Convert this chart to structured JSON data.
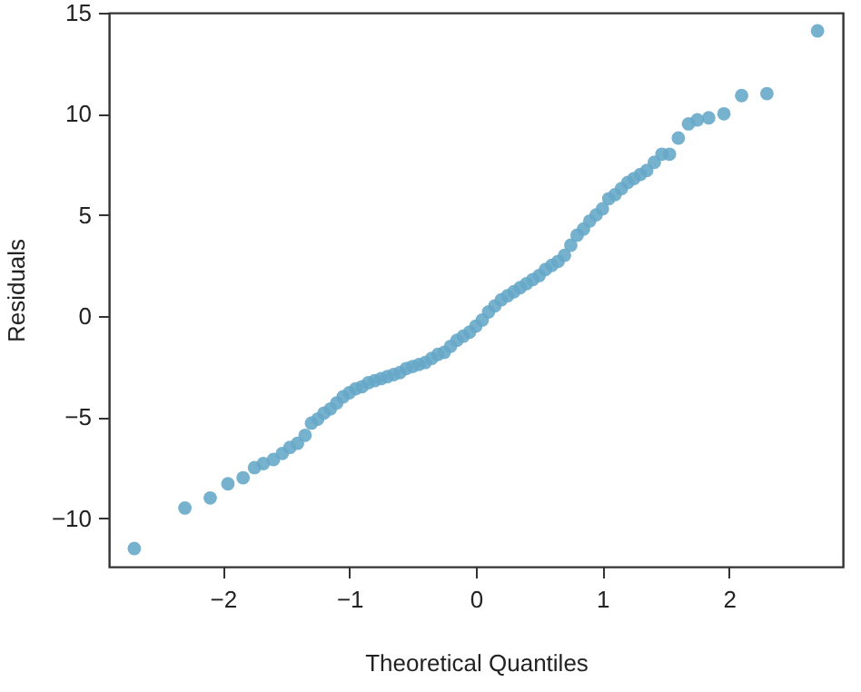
{
  "chart_data": {
    "type": "scatter",
    "xlabel": "Theoretical Quantiles",
    "ylabel": "Residuals",
    "xlim": [
      -2.9,
      2.9
    ],
    "ylim": [
      -12.4,
      15
    ],
    "xticks": [
      -2,
      -1,
      0,
      1,
      2
    ],
    "yticks": [
      -10,
      -5,
      0,
      5,
      10,
      15
    ],
    "grid": false,
    "marker": "circle",
    "x": [
      -2.7,
      -2.3,
      -2.1,
      -1.96,
      -1.84,
      -1.75,
      -1.68,
      -1.6,
      -1.53,
      -1.47,
      -1.41,
      -1.35,
      -1.3,
      -1.25,
      -1.2,
      -1.15,
      -1.1,
      -1.05,
      -1.0,
      -0.95,
      -0.9,
      -0.85,
      -0.8,
      -0.75,
      -0.7,
      -0.65,
      -0.6,
      -0.55,
      -0.5,
      -0.45,
      -0.4,
      -0.35,
      -0.3,
      -0.25,
      -0.2,
      -0.15,
      -0.1,
      -0.05,
      0,
      0.05,
      0.1,
      0.15,
      0.2,
      0.25,
      0.3,
      0.35,
      0.4,
      0.45,
      0.5,
      0.55,
      0.6,
      0.65,
      0.7,
      0.75,
      0.8,
      0.85,
      0.9,
      0.95,
      1.0,
      1.05,
      1.1,
      1.15,
      1.2,
      1.25,
      1.3,
      1.35,
      1.41,
      1.47,
      1.53,
      1.6,
      1.68,
      1.75,
      1.84,
      1.96,
      2.1,
      2.3,
      2.7
    ],
    "series": [
      {
        "color": "#67a9c9",
        "values": [
          -11.5,
          -9.5,
          -9.0,
          -8.3,
          -8.0,
          -7.5,
          -7.3,
          -7.1,
          -6.8,
          -6.5,
          -6.3,
          -5.9,
          -5.3,
          -5.1,
          -4.8,
          -4.6,
          -4.3,
          -4.0,
          -3.8,
          -3.6,
          -3.5,
          -3.3,
          -3.2,
          -3.1,
          -3.0,
          -2.9,
          -2.8,
          -2.6,
          -2.5,
          -2.4,
          -2.3,
          -2.1,
          -1.9,
          -1.8,
          -1.5,
          -1.2,
          -1.0,
          -0.8,
          -0.5,
          -0.2,
          0.2,
          0.5,
          0.8,
          1.0,
          1.2,
          1.4,
          1.6,
          1.8,
          2.0,
          2.3,
          2.5,
          2.7,
          3.0,
          3.5,
          4.0,
          4.3,
          4.7,
          5.0,
          5.3,
          5.8,
          6.0,
          6.3,
          6.6,
          6.8,
          7.0,
          7.2,
          7.6,
          8.0,
          8.0,
          8.8,
          9.5,
          9.7,
          9.8,
          10.0,
          10.9,
          11.0,
          14.1
        ]
      }
    ]
  }
}
